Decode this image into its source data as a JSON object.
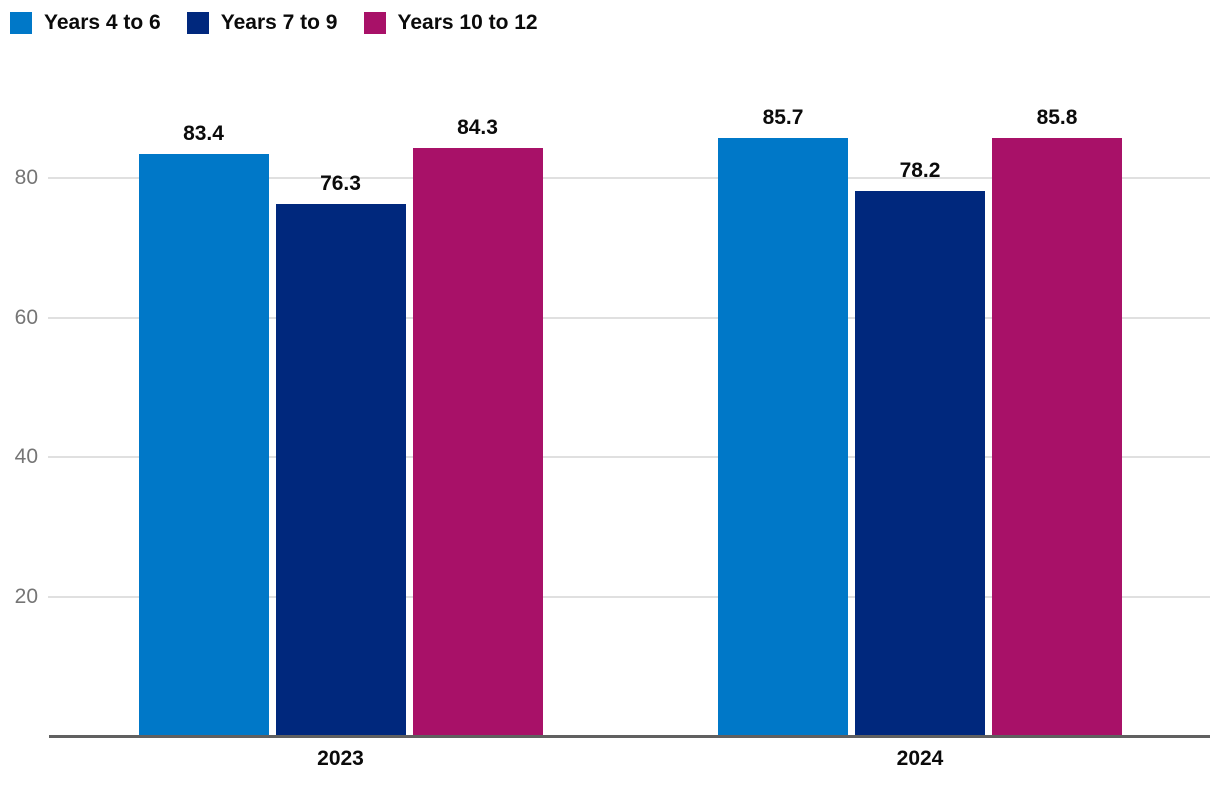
{
  "chart_data": {
    "type": "bar",
    "title": "",
    "categories": [
      "2023",
      "2024"
    ],
    "series": [
      {
        "name": "Years 4 to 6",
        "color": "#0078c8",
        "values": [
          83.4,
          85.7
        ]
      },
      {
        "name": "Years 7 to 9",
        "color": "#00287d",
        "values": [
          76.3,
          78.2
        ]
      },
      {
        "name": "Years 10 to 12",
        "color": "#a81168",
        "values": [
          84.3,
          85.8
        ]
      }
    ],
    "value_labels": [
      [
        "83.4",
        "76.3",
        "84.3"
      ],
      [
        "85.7",
        "78.2",
        "85.8"
      ]
    ],
    "yticks": [
      "20",
      "40",
      "60",
      "80"
    ],
    "ylim": [
      0,
      90
    ],
    "grid": "horizontal",
    "legend_position": "top-left",
    "colors": {
      "grid": "#e0e0e0",
      "axis": "#606060",
      "tick_text": "#757575",
      "label_text": "#0b0b0b"
    }
  }
}
